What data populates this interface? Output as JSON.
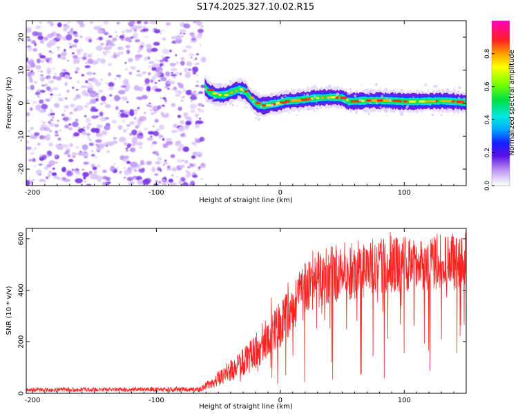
{
  "title": "S174.2025.327.10.02.R15",
  "colors": {
    "snr_line": "#ff2020",
    "frame": "#000000",
    "noise_light": "#d9c2fb",
    "noise_mid": "#b98cf3",
    "noise_dark": "#7e3ae6"
  },
  "chart_data": [
    {
      "type": "heatmap",
      "name": "spectrogram",
      "xlabel": "Height of straight line (km)",
      "ylabel": "Frequency (Hz)",
      "xlim": [
        -205,
        150
      ],
      "ylim": [
        -25,
        25
      ],
      "xticks": [
        -200,
        -100,
        0,
        100
      ],
      "xtick_labels": [
        "-200",
        "-100",
        "0",
        "100"
      ],
      "yticks": [
        -20,
        -10,
        0,
        10,
        20
      ],
      "ytick_labels": [
        "-20",
        "-10",
        "0",
        "10",
        "20"
      ],
      "noise_region_x": [
        -205,
        -62
      ],
      "signal_track": {
        "x": [
          -61,
          -58,
          -52,
          -45,
          -40,
          -33,
          -28,
          -23,
          -18,
          -13,
          -8,
          -2,
          5,
          12,
          20,
          30,
          40,
          50,
          55,
          60,
          70,
          80,
          90,
          100,
          110,
          120,
          130,
          140,
          150
        ],
        "freq": [
          5,
          3.5,
          2.5,
          2.5,
          3.3,
          4.2,
          3.5,
          1.0,
          -0.5,
          -0.8,
          -0.3,
          0.0,
          0.7,
          0.8,
          1.2,
          1.6,
          1.8,
          1.6,
          0.5,
          0.6,
          0.8,
          0.8,
          0.7,
          0.5,
          0.5,
          0.6,
          0.7,
          0.5,
          0.2
        ]
      },
      "colorbar": {
        "label": "Normalized spectral amplitude",
        "range": [
          0.0,
          1.0
        ],
        "ticks": [
          0.0,
          0.2,
          0.4,
          0.6,
          0.8
        ],
        "tick_labels": [
          "0.0",
          "0.2",
          "0.4",
          "0.6",
          "0.8"
        ]
      }
    },
    {
      "type": "line",
      "name": "snr",
      "xlabel": "Height of straight line (km)",
      "ylabel": "SNR (10 * v/v)",
      "xlim": [
        -205,
        150
      ],
      "ylim": [
        0,
        640
      ],
      "xticks": [
        -200,
        -100,
        0,
        100
      ],
      "xtick_labels": [
        "-200",
        "-100",
        "0",
        "100"
      ],
      "yticks": [
        0,
        200,
        400,
        600
      ],
      "ytick_labels": [
        "0",
        "200",
        "400",
        "600"
      ],
      "envelope": {
        "x": [
          -205,
          -65,
          -50,
          -40,
          -30,
          -20,
          -10,
          0,
          10,
          20,
          30,
          40,
          50,
          60,
          80,
          100,
          120,
          150
        ],
        "baseline": [
          14,
          15,
          55,
          90,
          120,
          160,
          220,
          270,
          320,
          410,
          440,
          460,
          470,
          480,
          490,
          500,
          510,
          520
        ],
        "noise_amp": [
          8,
          9,
          30,
          45,
          55,
          70,
          80,
          90,
          100,
          110,
          110,
          110,
          115,
          115,
          110,
          110,
          110,
          110
        ]
      }
    }
  ]
}
